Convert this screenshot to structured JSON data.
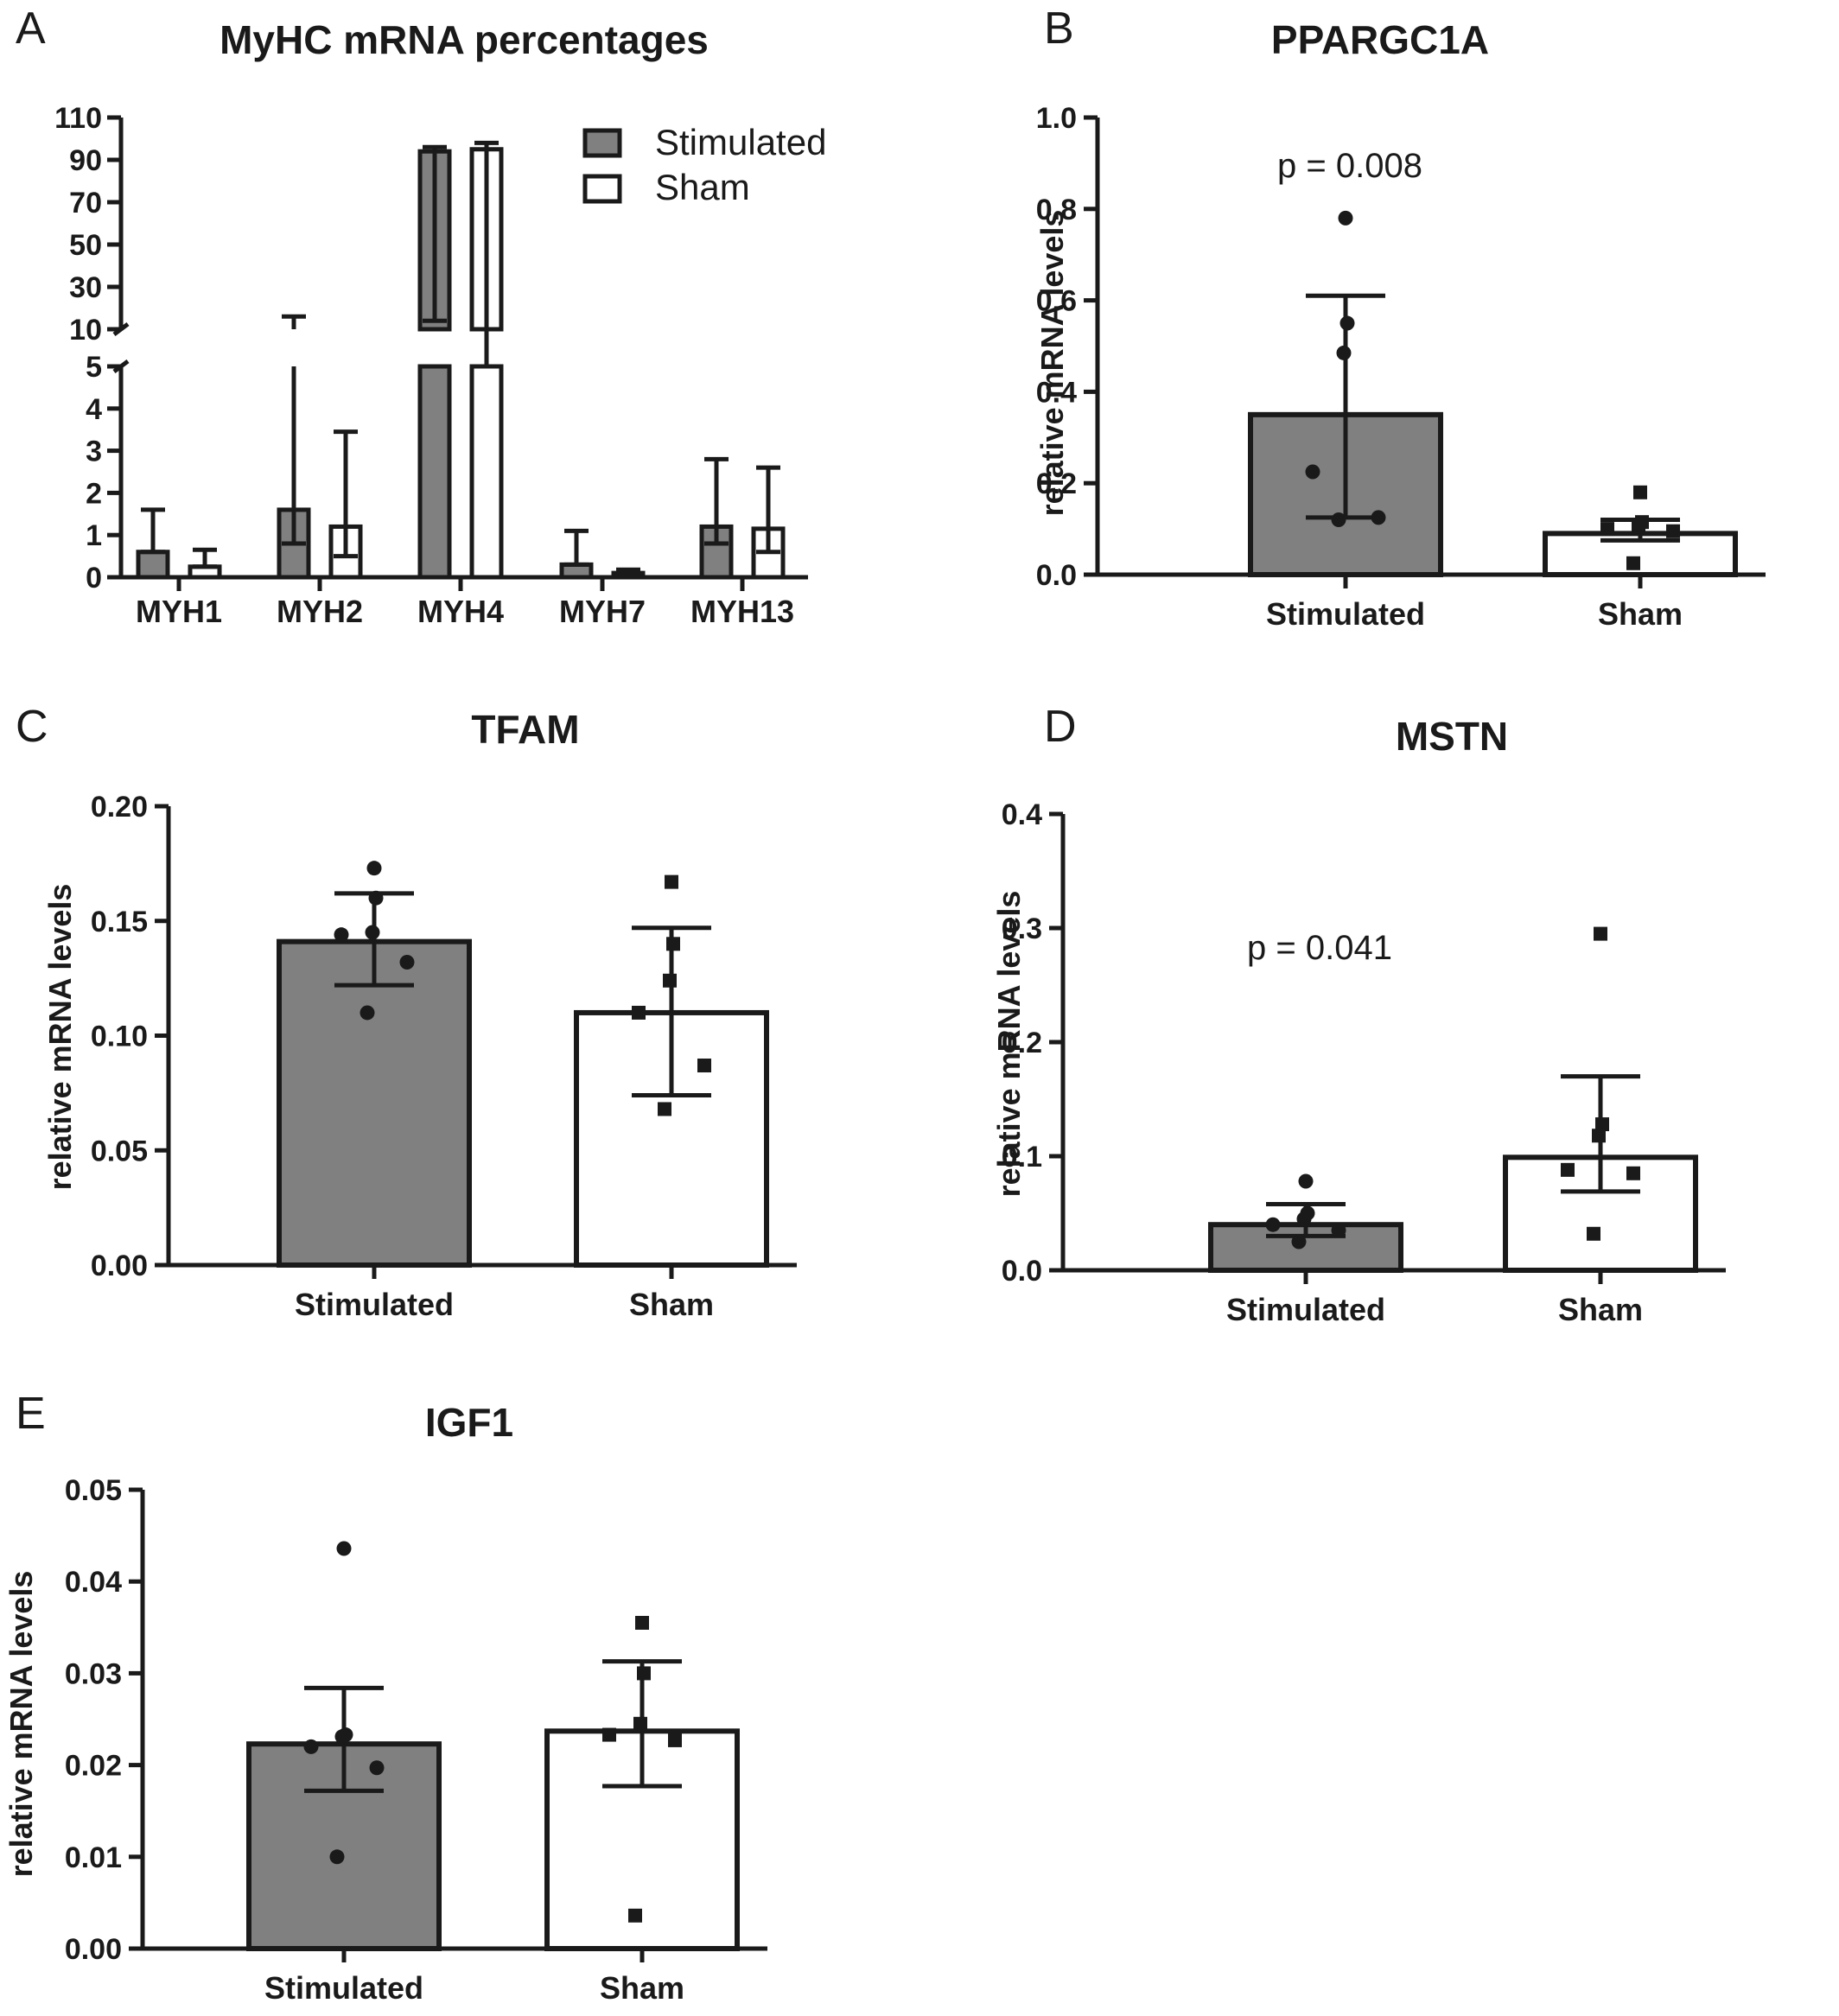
{
  "colors": {
    "stimulated": "#808080",
    "sham": "#ffffff",
    "ink": "#1a1a1a"
  },
  "chart_data": [
    {
      "panel": "A",
      "type": "bar",
      "title": "MyHC mRNA percentages",
      "categories": [
        "MYH1",
        "MYH2",
        "MYH4",
        "MYH7",
        "MYH13"
      ],
      "legend_position": "top-right",
      "broken_axis": true,
      "ylim_lower": [
        0,
        5
      ],
      "ylim_upper": [
        10,
        110
      ],
      "yticks_lower": [
        "0",
        "1",
        "2",
        "3",
        "4",
        "5"
      ],
      "yticks_upper": [
        "10",
        "30",
        "50",
        "70",
        "90",
        "110"
      ],
      "series": [
        {
          "name": "Stimulated",
          "values": [
            0.6,
            1.6,
            94,
            0.3,
            1.2
          ],
          "err_low": [
            0.6,
            0.8,
            14,
            0.3,
            0.8
          ],
          "err_high": [
            1.6,
            16,
            96,
            1.1,
            2.8
          ]
        },
        {
          "name": "Sham",
          "values": [
            0.25,
            1.2,
            95,
            0.1,
            1.15
          ],
          "err_low": [
            0.25,
            0.5,
            8,
            0.1,
            0.6
          ],
          "err_high": [
            0.65,
            3.45,
            98,
            0.18,
            2.6
          ]
        }
      ]
    },
    {
      "panel": "B",
      "type": "bar",
      "title": "PPARGC1A",
      "ylabel": "relative mRNA levels",
      "ylim": [
        0,
        1.0
      ],
      "yticks": [
        "0.0",
        "0.2",
        "0.4",
        "0.6",
        "0.8",
        "1.0"
      ],
      "categories": [
        "Stimulated",
        "Sham"
      ],
      "values": [
        0.35,
        0.09
      ],
      "err_low": [
        0.125,
        0.075
      ],
      "err_high": [
        0.61,
        0.12
      ],
      "points": [
        [
          0.78,
          0.55,
          0.485,
          0.225,
          0.125,
          0.12
        ],
        [
          0.18,
          0.115,
          0.105,
          0.1,
          0.095,
          0.025
        ]
      ],
      "annotation": "p = 0.008"
    },
    {
      "panel": "C",
      "type": "bar",
      "title": "TFAM",
      "ylabel": "relative mRNA levels",
      "ylim": [
        0,
        0.2
      ],
      "yticks": [
        "0.00",
        "0.05",
        "0.10",
        "0.15",
        "0.20"
      ],
      "categories": [
        "Stimulated",
        "Sham"
      ],
      "values": [
        0.141,
        0.11
      ],
      "err_low": [
        0.122,
        0.074
      ],
      "err_high": [
        0.162,
        0.147
      ],
      "points": [
        [
          0.173,
          0.16,
          0.145,
          0.144,
          0.132,
          0.11
        ],
        [
          0.167,
          0.14,
          0.124,
          0.11,
          0.087,
          0.068
        ]
      ]
    },
    {
      "panel": "D",
      "type": "bar",
      "title": "MSTN",
      "ylabel": "relative mRNA levels",
      "ylim": [
        0,
        0.4
      ],
      "yticks": [
        "0.0",
        "0.1",
        "0.2",
        "0.3",
        "0.4"
      ],
      "categories": [
        "Stimulated",
        "Sham"
      ],
      "values": [
        0.04,
        0.099
      ],
      "err_low": [
        0.03,
        0.069
      ],
      "err_high": [
        0.058,
        0.17
      ],
      "points": [
        [
          0.078,
          0.05,
          0.045,
          0.04,
          0.035,
          0.025
        ],
        [
          0.295,
          0.128,
          0.118,
          0.088,
          0.085,
          0.032
        ]
      ],
      "annotation": "p = 0.041"
    },
    {
      "panel": "E",
      "type": "bar",
      "title": "IGF1",
      "ylabel": "relative mRNA levels",
      "ylim": [
        0,
        0.05
      ],
      "yticks": [
        "0.00",
        "0.01",
        "0.02",
        "0.03",
        "0.04",
        "0.05"
      ],
      "categories": [
        "Stimulated",
        "Sham"
      ],
      "values": [
        0.0223,
        0.0237
      ],
      "err_low": [
        0.0172,
        0.0177
      ],
      "err_high": [
        0.0284,
        0.0313
      ],
      "points": [
        [
          0.0436,
          0.0233,
          0.0231,
          0.022,
          0.0197,
          0.01
        ],
        [
          0.0355,
          0.03,
          0.0245,
          0.0233,
          0.0227,
          0.0036
        ]
      ]
    }
  ]
}
